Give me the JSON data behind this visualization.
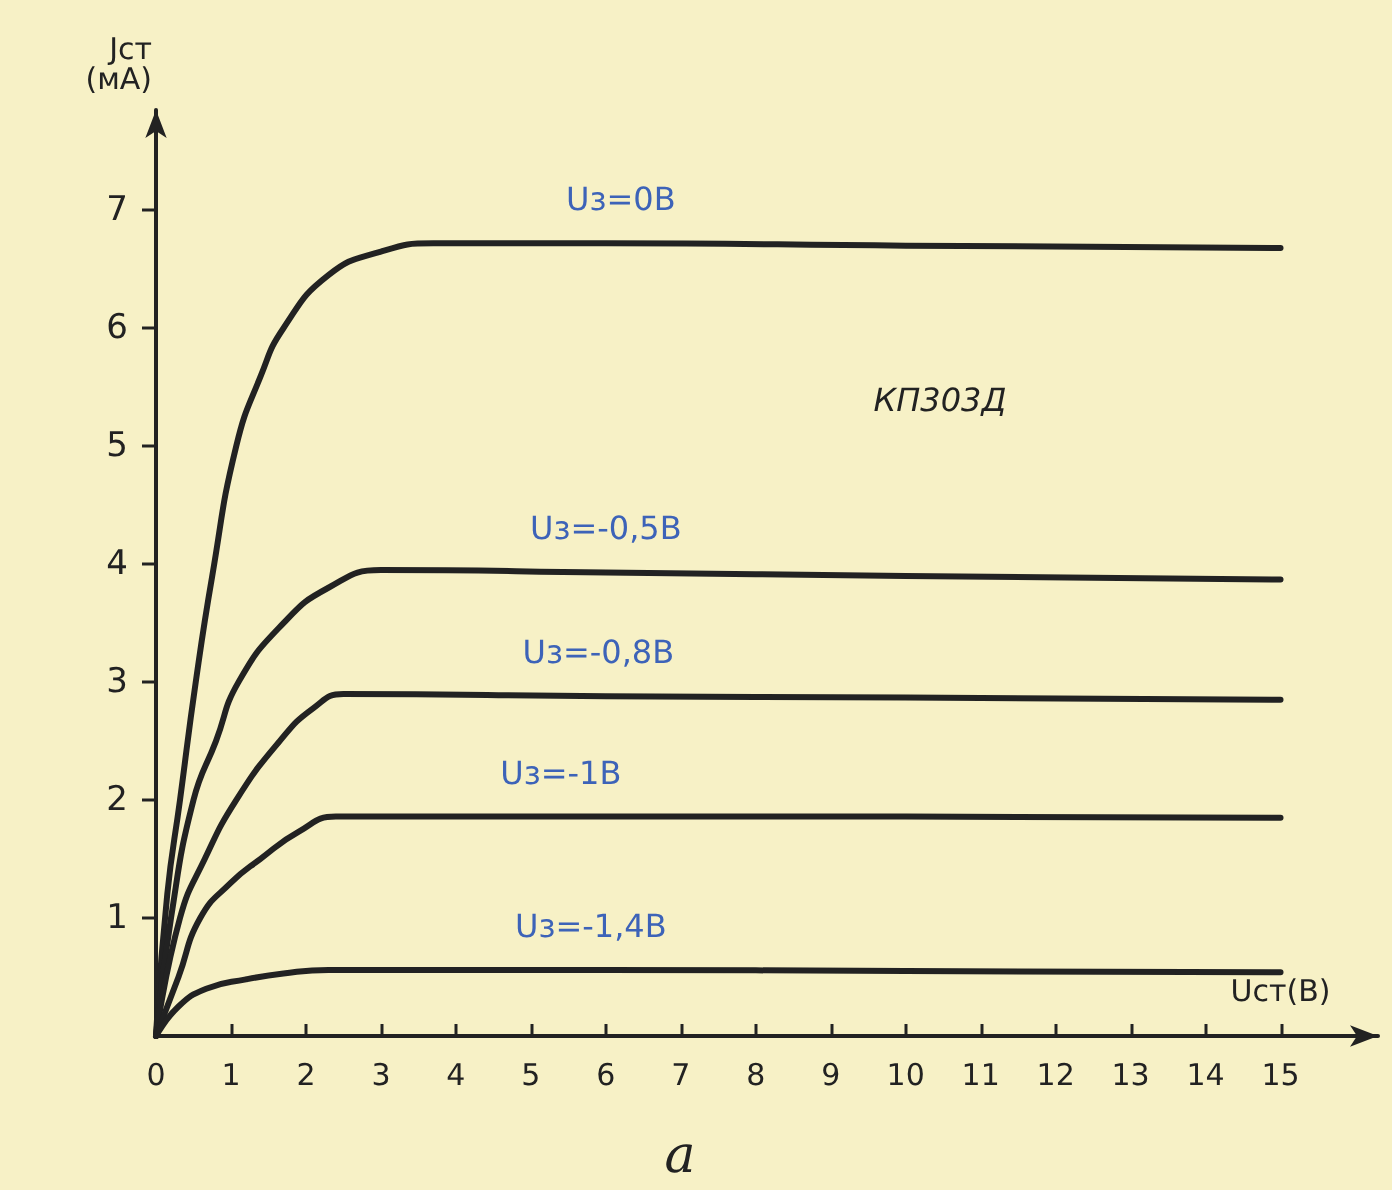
{
  "chart_data": {
    "type": "line",
    "xlabel": "Uст(В)",
    "ylabel": "Jст\n(мА)",
    "xlim": [
      0,
      16.3
    ],
    "ylim": [
      0,
      7.85
    ],
    "xticks": [
      0,
      1,
      2,
      3,
      4,
      5,
      6,
      7,
      8,
      9,
      10,
      11,
      12,
      13,
      14,
      15
    ],
    "yticks": [
      1,
      2,
      3,
      4,
      5,
      6,
      7
    ],
    "grid": false,
    "marker": "none",
    "line_style": "solid",
    "series": [
      {
        "color": "#222222",
        "x": [
          0,
          0.15,
          0.32,
          0.53,
          0.75,
          1.07,
          1.4,
          1.7,
          2.3,
          3,
          3.7,
          6,
          10,
          15
        ],
        "values": [
          0,
          1.2,
          2,
          3,
          3.9,
          5,
          5.6,
          6,
          6.45,
          6.65,
          6.72,
          6.72,
          6.7,
          6.68
        ]
      },
      {
        "color": "#222222",
        "x": [
          0,
          0.2,
          0.5,
          0.8,
          1.1,
          1.7,
          2.3,
          3,
          6,
          10,
          15
        ],
        "values": [
          0,
          1,
          2,
          2.5,
          3,
          3.5,
          3.8,
          3.95,
          3.93,
          3.9,
          3.87
        ]
      },
      {
        "color": "#222222",
        "x": [
          0,
          0.32,
          0.65,
          1.07,
          1.65,
          2.1,
          2.5,
          6,
          10,
          15
        ],
        "values": [
          0,
          1,
          1.5,
          2,
          2.5,
          2.78,
          2.9,
          2.88,
          2.87,
          2.85
        ]
      },
      {
        "color": "#222222",
        "x": [
          0,
          0.3,
          0.59,
          1,
          1.39,
          1.9,
          2.4,
          6,
          10,
          15
        ],
        "values": [
          0,
          0.5,
          1,
          1.3,
          1.5,
          1.73,
          1.86,
          1.86,
          1.86,
          1.85
        ]
      },
      {
        "color": "#222222",
        "x": [
          0,
          0.3,
          0.67,
          1.2,
          1.7,
          2.3,
          6,
          10,
          15
        ],
        "values": [
          0,
          0.25,
          0.4,
          0.48,
          0.53,
          0.56,
          0.56,
          0.55,
          0.54
        ]
      }
    ],
    "annotations": [
      {
        "text": "Uз=0В",
        "x": 6.2,
        "y": 6.72
      },
      {
        "text": "Uз=-0,5В",
        "x": 6,
        "y": 3.93
      },
      {
        "text": "Uз=-0,8В",
        "x": 5.9,
        "y": 2.88
      },
      {
        "text": "Uз=-1В",
        "x": 5.4,
        "y": 1.86
      },
      {
        "text": "Uз=-1,4В",
        "x": 5.8,
        "y": 0.56
      },
      "КП303Д",
      "а"
    ]
  }
}
